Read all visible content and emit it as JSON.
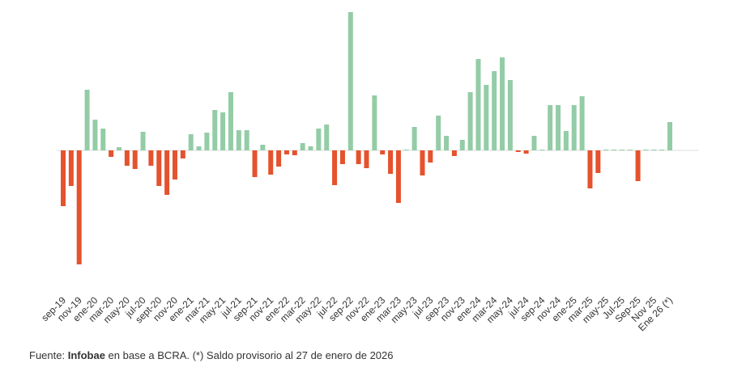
{
  "chart_data": {
    "type": "bar",
    "categories": [
      "sep-19",
      null,
      "nov-19",
      null,
      "ene-20",
      null,
      "mar-20",
      null,
      "may-20",
      null,
      "jul-20",
      null,
      "sept-20",
      null,
      "nov-20",
      null,
      "ene-21",
      null,
      "mar-21",
      null,
      "may-21",
      null,
      "jul-21",
      null,
      "sep-21",
      null,
      "nov-21",
      null,
      "ene-22",
      null,
      "mar-22",
      null,
      "may-22",
      null,
      "jul-22",
      null,
      "sep-22",
      null,
      "nov-22",
      null,
      "ene-23",
      null,
      "mar-23",
      null,
      "may-23",
      null,
      "jul-23",
      null,
      "sep-23",
      null,
      "nov-23",
      null,
      "ene-24",
      null,
      "mar-24",
      null,
      "may-24",
      null,
      "jul-24",
      null,
      "sep-24",
      null,
      "nov-24",
      null,
      "ene-25",
      null,
      "mar-25",
      null,
      "may-25",
      null,
      "Jul-25",
      null,
      "Sep-25",
      null,
      "Nov 25",
      null,
      "Ene 26 (*)"
    ],
    "values": [
      -69,
      -44,
      -141,
      75,
      38,
      27,
      -8,
      4,
      -19,
      -23,
      23,
      -19,
      -44,
      -55,
      -36,
      -10,
      20,
      5,
      22,
      50,
      47,
      72,
      25,
      25,
      -33,
      7,
      -30,
      -20,
      -5,
      -6,
      9,
      5,
      27,
      32,
      -43,
      -17,
      171,
      -17,
      -22,
      68,
      -5,
      -29,
      -65,
      1,
      29,
      -31,
      -15,
      43,
      18,
      -7,
      13,
      72,
      113,
      81,
      98,
      115,
      87,
      -2,
      -4,
      18,
      1,
      56,
      56,
      24,
      56,
      67,
      -47,
      -28,
      1,
      1,
      1,
      1,
      -38,
      1,
      1,
      1,
      35
    ],
    "positive_color": "#93cca6",
    "negative_color": "#e5522d",
    "ylim": [
      -145,
      175
    ]
  },
  "footer": {
    "prefix": "Fuente: ",
    "source": "Infobae",
    "note": " en base a BCRA. (*) Saldo provisorio al 27 de enero de 2026"
  }
}
